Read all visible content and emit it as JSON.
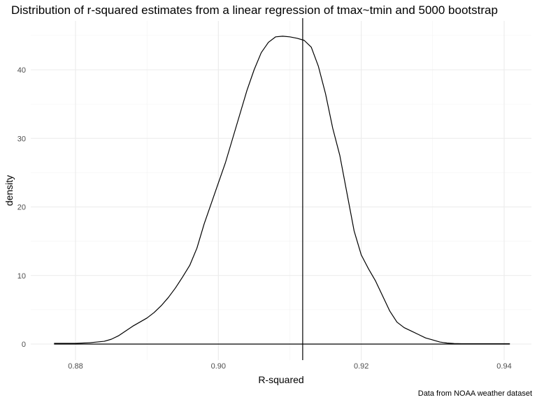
{
  "chart_data": {
    "type": "area",
    "title": "Distribution of r-squared estimates from a linear regression of tmax~tmin and 5000 bootstrap",
    "xlabel": "R-squared",
    "ylabel": "density",
    "caption": "Data from NOAA weather dataset",
    "xlim": [
      0.877,
      0.941
    ],
    "ylim": [
      0,
      45
    ],
    "x_ticks": [
      0.88,
      0.9,
      0.92,
      0.94
    ],
    "x_tick_labels": [
      "0.88",
      "0.90",
      "0.92",
      "0.94"
    ],
    "y_ticks": [
      0,
      10,
      20,
      30,
      40
    ],
    "y_tick_labels": [
      "0",
      "10",
      "20",
      "30",
      "40"
    ],
    "grid": true,
    "vline": 0.9118,
    "series": [
      {
        "x": [
          0.877,
          0.878,
          0.88,
          0.882,
          0.884,
          0.885,
          0.886,
          0.887,
          0.888,
          0.889,
          0.89,
          0.891,
          0.892,
          0.893,
          0.894,
          0.895,
          0.896,
          0.897,
          0.898,
          0.899,
          0.9,
          0.901,
          0.902,
          0.903,
          0.904,
          0.905,
          0.906,
          0.907,
          0.908,
          0.909,
          0.91,
          0.911,
          0.912,
          0.913,
          0.914,
          0.915,
          0.916,
          0.917,
          0.918,
          0.919,
          0.92,
          0.921,
          0.922,
          0.923,
          0.924,
          0.925,
          0.926,
          0.927,
          0.928,
          0.929,
          0.93,
          0.931,
          0.932,
          0.933,
          0.934,
          0.935,
          0.936,
          0.937,
          0.938,
          0.939,
          0.94,
          0.9408
        ],
        "y": [
          0.1,
          0.1,
          0.1,
          0.2,
          0.4,
          0.7,
          1.2,
          1.9,
          2.6,
          3.2,
          3.8,
          4.6,
          5.6,
          6.8,
          8.2,
          9.8,
          11.5,
          14.0,
          17.5,
          20.5,
          23.5,
          26.5,
          30.0,
          33.5,
          37.0,
          40.0,
          42.5,
          44.0,
          44.8,
          44.9,
          44.8,
          44.6,
          44.3,
          43.3,
          40.5,
          36.5,
          31.5,
          27.5,
          22.0,
          16.5,
          13.0,
          11.0,
          9.2,
          7.0,
          4.8,
          3.2,
          2.4,
          1.9,
          1.4,
          0.9,
          0.6,
          0.3,
          0.15,
          0.08,
          0.05,
          0.05,
          0.05,
          0.05,
          0.05,
          0.05,
          0.05,
          0.05
        ]
      }
    ]
  }
}
